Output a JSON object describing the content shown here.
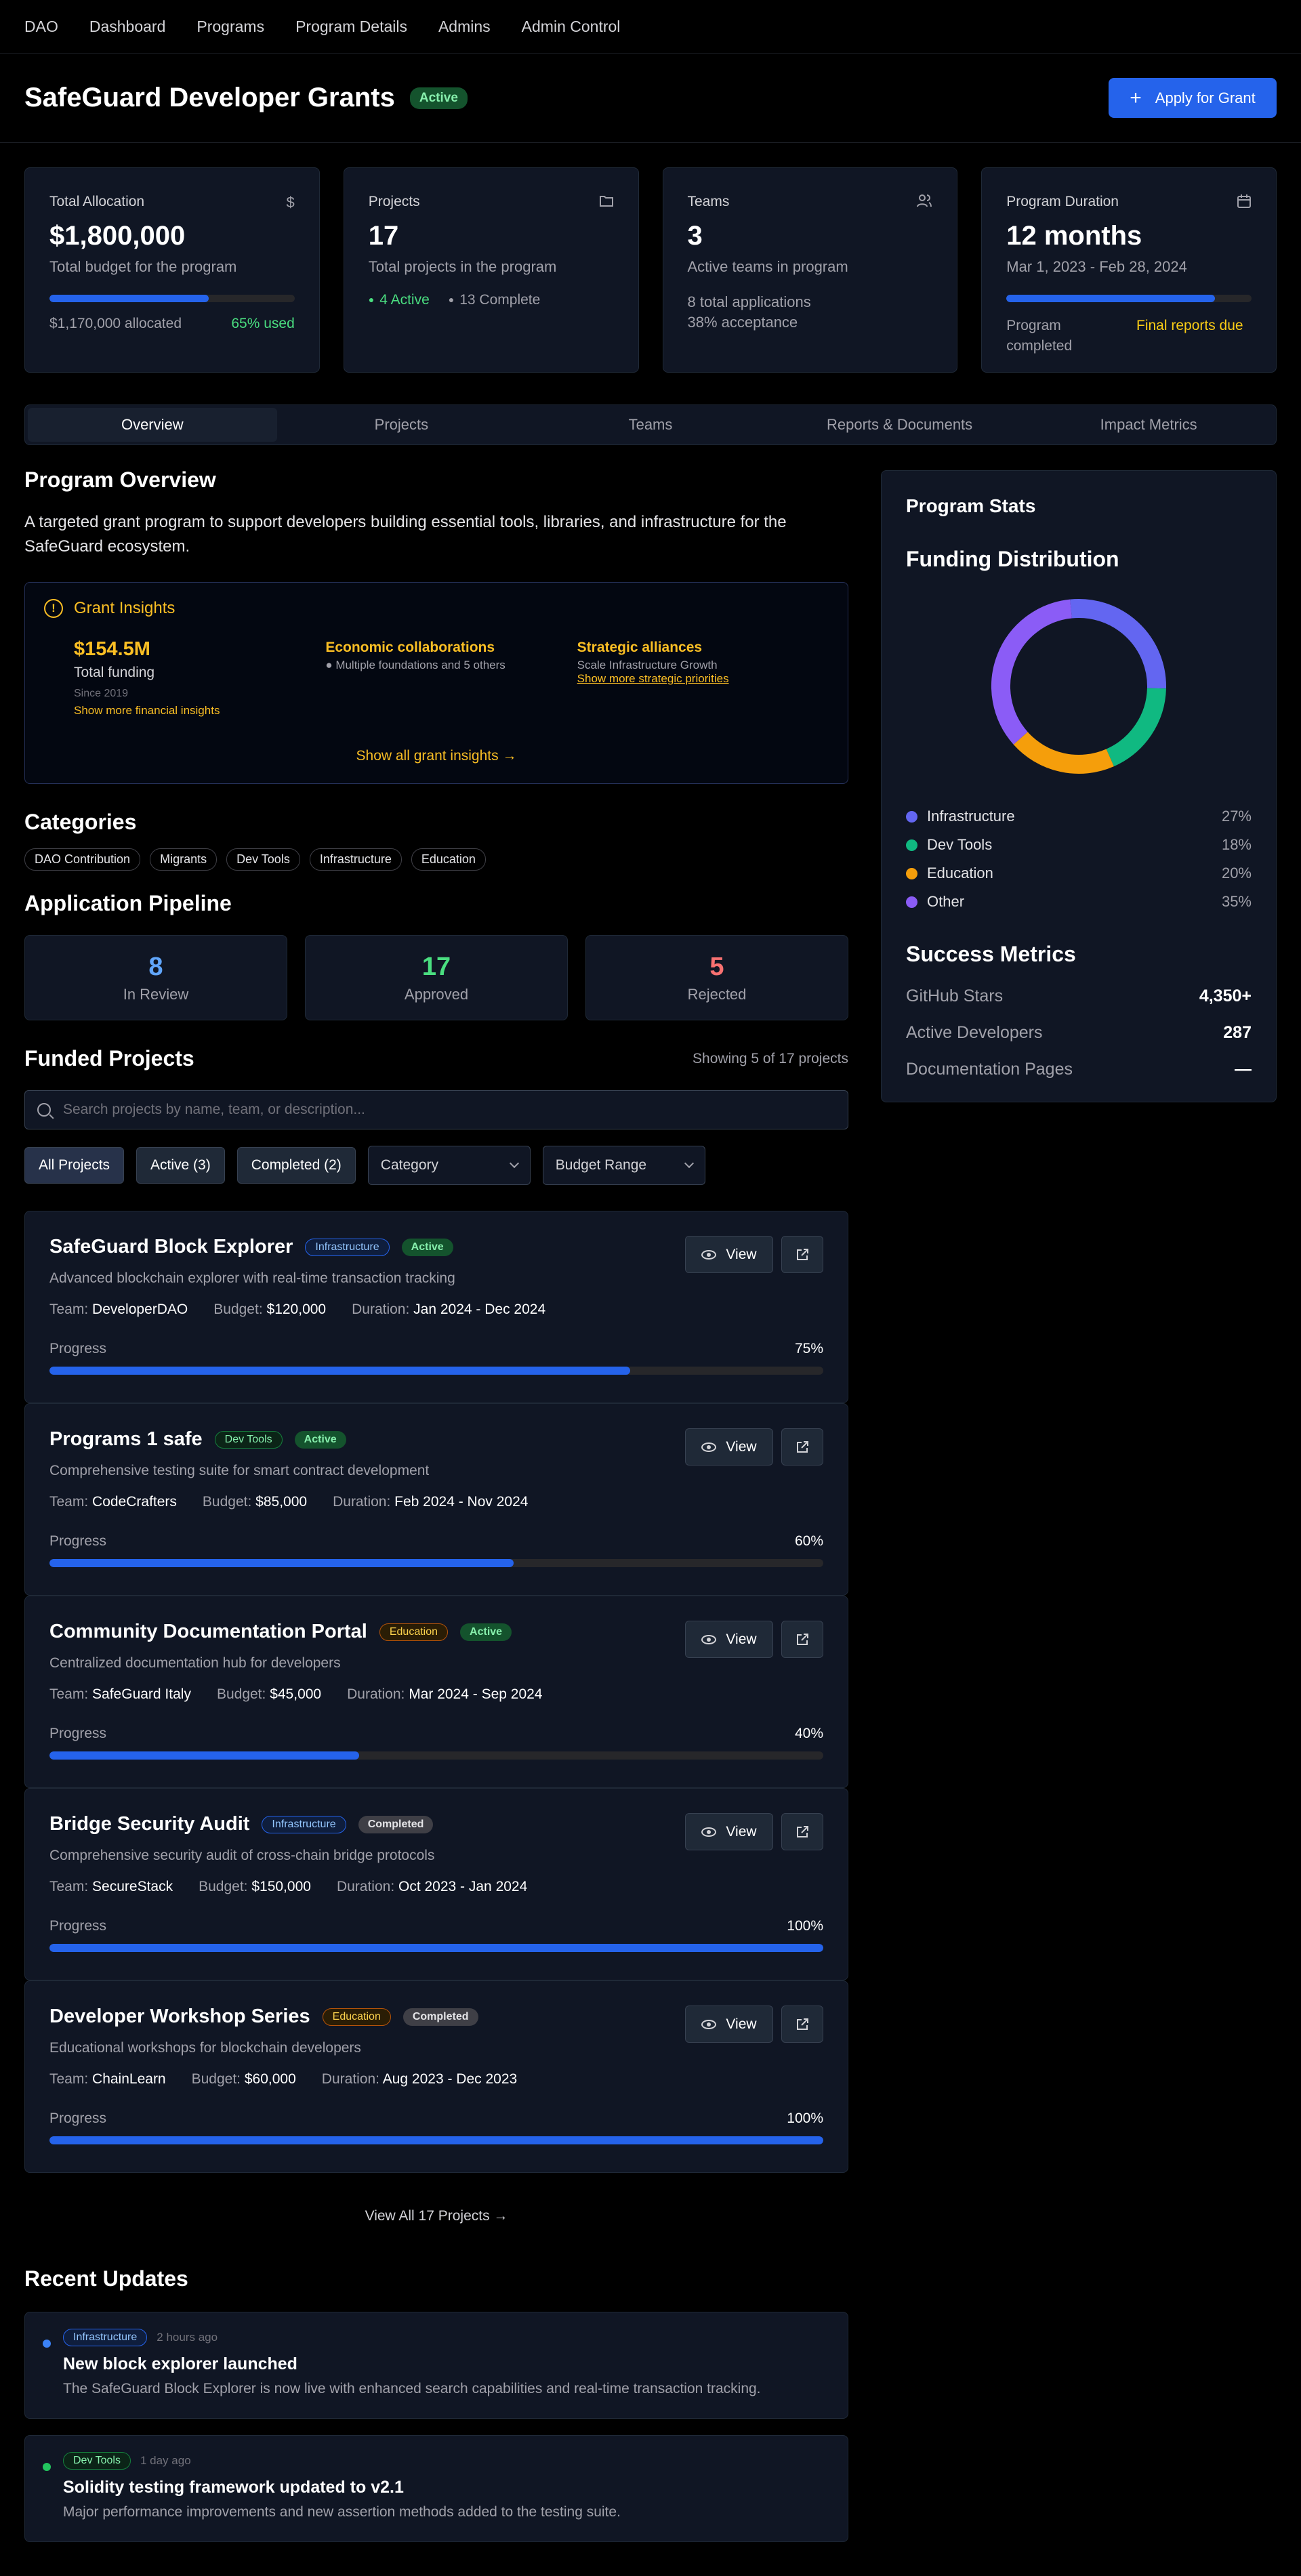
{
  "nav": [
    "DAO",
    "Dashboard",
    "Programs",
    "Program Details",
    "Admins",
    "Admin Control"
  ],
  "header": {
    "title": "SafeGuard Developer Grants",
    "status": "Active",
    "apply_label": "Apply for Grant"
  },
  "stats": {
    "allocation": {
      "title": "Total Allocation",
      "value": "$1,800,000",
      "sub": "Total budget for the program",
      "progress": 0.65,
      "allocated": "$1,170,000 allocated",
      "used": "65% used"
    },
    "projects": {
      "title": "Projects",
      "value": "17",
      "sub": "Total projects in the program",
      "active": "4 Active",
      "complete": "13 Complete"
    },
    "teams": {
      "title": "Teams",
      "value": "3",
      "sub": "Active teams in program",
      "applications": "8 total applications",
      "acceptance": "38% acceptance"
    },
    "duration": {
      "title": "Program Duration",
      "value": "12 months",
      "sub": "Mar 1, 2023 - Feb 28, 2024",
      "progress": 0.85,
      "status": "Program completed",
      "note": "Final reports due"
    }
  },
  "tabs": [
    "Overview",
    "Projects",
    "Teams",
    "Reports & Documents",
    "Impact Metrics"
  ],
  "overview": {
    "title": "Program Overview",
    "description": "A targeted grant program to support developers building essential tools, libraries, and infrastructure for the SafeGuard ecosystem."
  },
  "insights": {
    "title": "Grant Insights",
    "funding_value": "$154.5M",
    "funding_label": "Total funding",
    "funding_since": "Since 2019",
    "funding_link": "Show more financial insights",
    "econ_title": "Economic collaborations",
    "econ_text": "● Multiple foundations and 5 others",
    "strat_title": "Strategic alliances",
    "strat_text": "Scale Infrastructure Growth",
    "strat_link": "Show more strategic priorities",
    "show_all": "Show all grant insights →"
  },
  "categories": {
    "title": "Categories",
    "items": [
      "DAO Contribution",
      "Migrants",
      "Dev Tools",
      "Infrastructure",
      "Education"
    ]
  },
  "pipeline": {
    "title": "Application Pipeline",
    "review": {
      "value": "8",
      "label": "In Review",
      "color": "#60a5fa"
    },
    "approved": {
      "value": "17",
      "label": "Approved",
      "color": "#4ade80"
    },
    "rejected": {
      "value": "5",
      "label": "Rejected",
      "color": "#f87171"
    }
  },
  "funded": {
    "title": "Funded Projects",
    "showing": "Showing 5 of 17 projects",
    "search_placeholder": "Search projects by name, team, or description...",
    "filters": [
      "All Projects",
      "Active (3)",
      "Completed (2)"
    ],
    "category_select": "Category",
    "budget_select": "Budget Range",
    "view_label": "View",
    "view_all": "View All 17 Projects →",
    "team_label": "Team:",
    "budget_label": "Budget:",
    "duration_label": "Duration:",
    "progress_label": "Progress",
    "projects": [
      {
        "title": "SafeGuard Block Explorer",
        "tag": "Infrastructure",
        "status": "Active",
        "desc": "Advanced blockchain explorer with real-time transaction tracking",
        "team": "DeveloperDAO",
        "budget": "$120,000",
        "duration": "Jan 2024 - Dec 2024",
        "progress": "75%"
      },
      {
        "title": "Programs 1 safe",
        "tag": "Dev Tools",
        "status": "Active",
        "desc": "Comprehensive testing suite for smart contract development",
        "team": "CodeCrafters",
        "budget": "$85,000",
        "duration": "Feb 2024 - Nov 2024",
        "progress": "60%"
      },
      {
        "title": "Community Documentation Portal",
        "tag": "Education",
        "status": "Active",
        "desc": "Centralized documentation hub for developers",
        "team": "SafeGuard Italy",
        "budget": "$45,000",
        "duration": "Mar 2024 - Sep 2024",
        "progress": "40%"
      },
      {
        "title": "Bridge Security Audit",
        "tag": "Infrastructure",
        "status": "Completed",
        "desc": "Comprehensive security audit of cross-chain bridge protocols",
        "team": "SecureStack",
        "budget": "$150,000",
        "duration": "Oct 2023 - Jan 2024",
        "progress": "100%"
      },
      {
        "title": "Developer Workshop Series",
        "tag": "Education",
        "status": "Completed",
        "desc": "Educational workshops for blockchain developers",
        "team": "ChainLearn",
        "budget": "$60,000",
        "duration": "Aug 2023 - Dec 2023",
        "progress": "100%"
      }
    ]
  },
  "updates": {
    "title": "Recent Updates",
    "items": [
      {
        "tag": "Infrastructure",
        "time": "2 hours ago",
        "title": "New block explorer launched",
        "text": "The SafeGuard Block Explorer is now live with enhanced search capabilities and real-time transaction tracking.",
        "dot": "#3b82f6"
      },
      {
        "tag": "Dev Tools",
        "time": "1 day ago",
        "title": "Solidity testing framework updated to v2.1",
        "text": "Major performance improvements and new assertion methods added to the testing suite.",
        "dot": "#22c55e"
      }
    ]
  },
  "sidebar": {
    "title": "Program Stats",
    "funding_title": "Funding Distribution",
    "distribution": [
      {
        "name": "Infrastructure",
        "pct": "27%",
        "value": 27,
        "color": "#6366f1"
      },
      {
        "name": "Dev Tools",
        "pct": "18%",
        "value": 18,
        "color": "#10b981"
      },
      {
        "name": "Education",
        "pct": "20%",
        "value": 20,
        "color": "#f59e0b"
      },
      {
        "name": "Other",
        "pct": "35%",
        "value": 35,
        "color": "#8b5cf6"
      }
    ],
    "success_title": "Success Metrics",
    "metrics": [
      {
        "label": "GitHub Stars",
        "value": "4,350+"
      },
      {
        "label": "Active Developers",
        "value": "287"
      },
      {
        "label": "Documentation Pages",
        "value": "—"
      }
    ]
  }
}
